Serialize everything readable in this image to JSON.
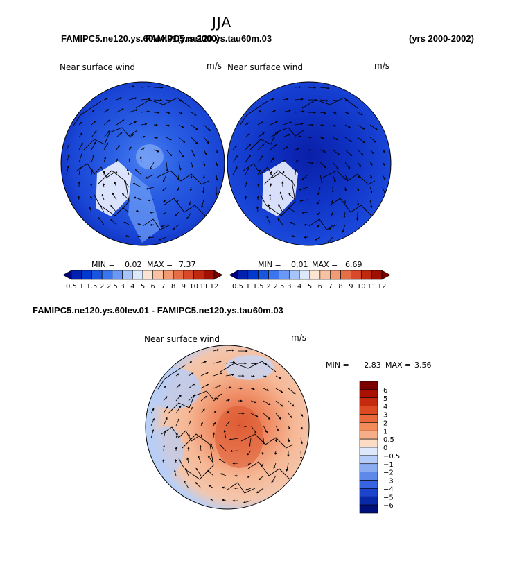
{
  "season": "JJA",
  "header": {
    "case_a": "FAMIPC5.ne120.ys.60lev.01",
    "case_b": "FAMIPC5.ne120.ys.tau60m.03",
    "years_a": "(yrs 2000)",
    "years_b": "(yrs 2000-2002)"
  },
  "diff_title": "FAMIPC5.ne120.ys.60lev.01 - FAMIPC5.ne120.ys.tau60m.03",
  "panels": [
    {
      "id": "left",
      "title": "Near surface wind",
      "units": "m/s",
      "min_label": "MIN =",
      "min": "0.02",
      "max_label": "MAX =",
      "max": "7.37"
    },
    {
      "id": "right",
      "title": "Near surface wind",
      "units": "m/s",
      "min_label": "MIN =",
      "min": "0.01",
      "max_label": "MAX =",
      "max": "6.69"
    },
    {
      "id": "diff",
      "title": "Near surface wind",
      "units": "m/s",
      "min_label": "MIN =",
      "min": "−2.83",
      "max_label": "MAX =",
      "max": "3.56"
    }
  ],
  "chart_data": [
    {
      "type": "heatmap",
      "title": "Near surface wind",
      "units": "m/s",
      "projection": "north polar stereographic",
      "min": 0.02,
      "max": 7.37,
      "colorbar": {
        "orientation": "horizontal",
        "levels": [
          "0.5",
          "1",
          "1.5",
          "2",
          "2.5",
          "3",
          "4",
          "5",
          "6",
          "7",
          "8",
          "9",
          "10",
          "11",
          "12"
        ],
        "colors": [
          "#00007f",
          "#0020b0",
          "#0038d0",
          "#1a55e0",
          "#3a74ee",
          "#6a98f6",
          "#a6c4fa",
          "#dce8fc",
          "#fde4d2",
          "#f8c2a2",
          "#f29a74",
          "#e66e46",
          "#d8482a",
          "#c02810",
          "#a01000",
          "#780000"
        ]
      }
    },
    {
      "type": "heatmap",
      "title": "Near surface wind",
      "units": "m/s",
      "projection": "north polar stereographic",
      "min": 0.01,
      "max": 6.69,
      "colorbar": {
        "orientation": "horizontal",
        "levels": [
          "0.5",
          "1",
          "1.5",
          "2",
          "2.5",
          "3",
          "4",
          "5",
          "6",
          "7",
          "8",
          "9",
          "10",
          "11",
          "12"
        ],
        "colors": [
          "#00007f",
          "#0020b0",
          "#0038d0",
          "#1a55e0",
          "#3a74ee",
          "#6a98f6",
          "#a6c4fa",
          "#dce8fc",
          "#fde4d2",
          "#f8c2a2",
          "#f29a74",
          "#e66e46",
          "#d8482a",
          "#c02810",
          "#a01000",
          "#780000"
        ]
      }
    },
    {
      "type": "heatmap",
      "title": "Near surface wind",
      "units": "m/s",
      "projection": "north polar stereographic",
      "min": -2.83,
      "max": 3.56,
      "colorbar": {
        "orientation": "vertical",
        "levels": [
          "6",
          "5",
          "4",
          "3",
          "2",
          "1",
          "0.5",
          "0",
          "−0.5",
          "−1",
          "−2",
          "−3",
          "−4",
          "−5",
          "−6"
        ],
        "colors": [
          "#7a0000",
          "#a81000",
          "#c62a0e",
          "#dc4a24",
          "#ea6a3c",
          "#f28a5a",
          "#f6ae88",
          "#fcdcc4",
          "#dce8fc",
          "#b6ccf8",
          "#8cacf2",
          "#5e88ea",
          "#3864e2",
          "#1c44cc",
          "#0828a8",
          "#00107a"
        ]
      }
    }
  ]
}
